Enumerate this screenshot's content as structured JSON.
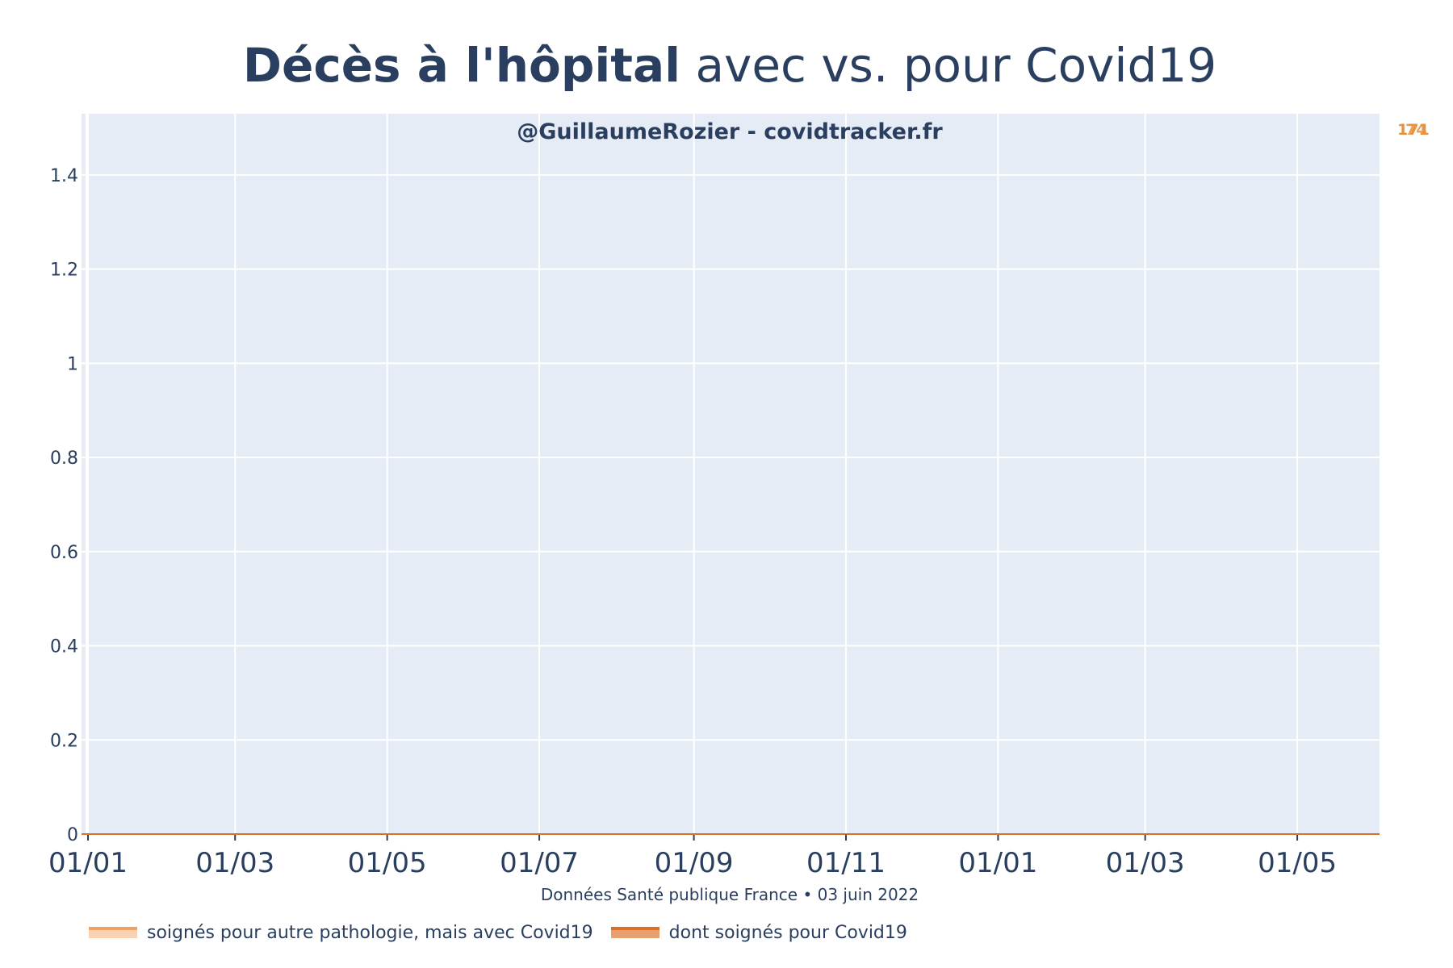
{
  "title": {
    "bold": "Décès à l'hôpital",
    "regular": " avec vs. pour Covid19"
  },
  "watermark": "@GuillaumeRozier - covidtracker.fr",
  "source": "Données Santé publique France • 03 juin 2022",
  "end_labels": [
    "171",
    "74"
  ],
  "colors": {
    "plot_bg": "#e5ecf6",
    "grid": "#ffffff",
    "text": "#2a3f5f",
    "series_avec_line": "#f0a060",
    "series_avec_fill": "#f7d2b3",
    "series_pour_line": "#d9702a",
    "series_pour_fill": "#e8a070",
    "end_label": "#e8913f"
  },
  "chart_data": {
    "type": "area",
    "x_tick_labels": [
      "01/01",
      "01/03",
      "01/05",
      "01/07",
      "01/09",
      "01/11",
      "01/01",
      "01/03",
      "01/05"
    ],
    "x_range": [
      "2021-01-01",
      "2022-06-03"
    ],
    "x_tick_dates": [
      "2021-01-01",
      "2021-03-01",
      "2021-05-01",
      "2021-07-01",
      "2021-09-01",
      "2021-11-01",
      "2022-01-01",
      "2022-03-01",
      "2022-05-01"
    ],
    "y_ticks": [
      0,
      0.2,
      0.4,
      0.6,
      0.8,
      1,
      1.2,
      1.4
    ],
    "y_tick_labels": [
      "0",
      "0.2",
      "0.4",
      "0.6",
      "0.8",
      "1",
      "1.2",
      "1.4"
    ],
    "ylim": [
      0,
      1.53
    ],
    "grid": true,
    "legend_placement": "bottom-left",
    "series": [
      {
        "name": "soignés pour autre pathologie, mais avec Covid19",
        "values": []
      },
      {
        "name": "dont soignés pour Covid19",
        "values": []
      }
    ]
  }
}
